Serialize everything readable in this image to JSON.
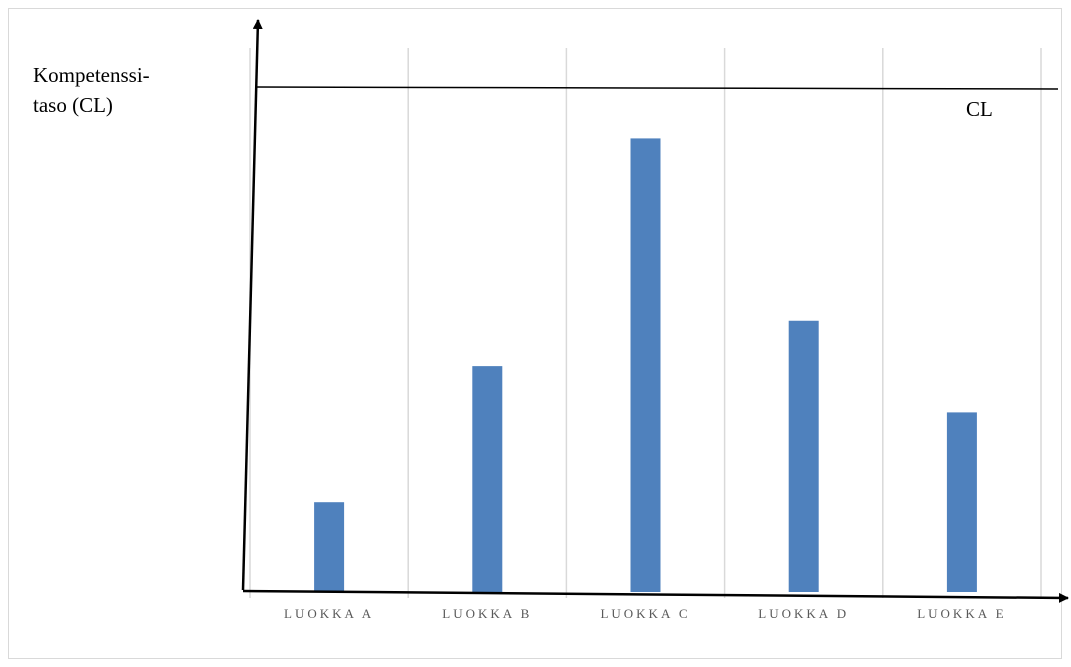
{
  "chart_data": {
    "type": "bar",
    "categories": [
      "LUOKKA A",
      "LUOKKA B",
      "LUOKKA C",
      "LUOKKA D",
      "LUOKKA E"
    ],
    "values": [
      0.196,
      0.493,
      0.99,
      0.592,
      0.392
    ],
    "ylim": [
      0,
      1.1
    ],
    "ylabel_lines": [
      "Kompetenssi-",
      "taso (CL)"
    ],
    "reference_line": {
      "label": "CL",
      "value": 1.1
    },
    "grid": "vertical",
    "bar_color": "#4f81bd",
    "grid_color": "#d9d9d9",
    "axis_color": "#000000"
  }
}
